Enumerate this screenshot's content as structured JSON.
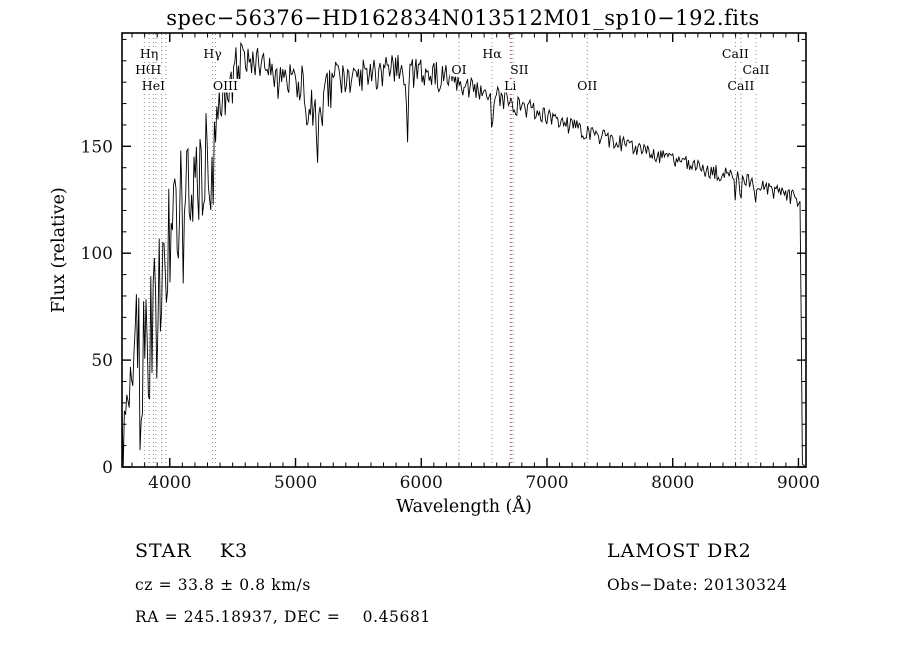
{
  "title": "spec−56376−HD162834N013512M01_sp10−192.fits",
  "chart_data": {
    "type": "line",
    "title": "spec−56376−HD162834N013512M01_sp10−192.fits",
    "xlabel": "Wavelength (Å)",
    "ylabel": "Flux (relative)",
    "xlim": [
      3620,
      9060
    ],
    "ylim": [
      0,
      203
    ],
    "x_ticks": [
      4000,
      5000,
      6000,
      7000,
      8000,
      9000
    ],
    "y_ticks": [
      0,
      50,
      100,
      150
    ],
    "x_minor_step": 100,
    "y_minor_step": 10,
    "grid": false,
    "legend": "none",
    "line_color": "#000000",
    "marker_colors": {
      "gray": "#8a8a8a",
      "red": "#c23232"
    },
    "spectrum_backbone": [
      [
        3630,
        18
      ],
      [
        3680,
        35
      ],
      [
        3720,
        48
      ],
      [
        3760,
        58
      ],
      [
        3800,
        68
      ],
      [
        3850,
        80
      ],
      [
        3900,
        92
      ],
      [
        3950,
        100
      ],
      [
        4000,
        112
      ],
      [
        4050,
        118
      ],
      [
        4100,
        126
      ],
      [
        4150,
        130
      ],
      [
        4200,
        136
      ],
      [
        4250,
        142
      ],
      [
        4300,
        148
      ],
      [
        4350,
        155
      ],
      [
        4400,
        168
      ],
      [
        4450,
        178
      ],
      [
        4500,
        186
      ],
      [
        4550,
        191
      ],
      [
        4600,
        195
      ],
      [
        4650,
        193
      ],
      [
        4700,
        191
      ],
      [
        4750,
        189
      ],
      [
        4800,
        188
      ],
      [
        4850,
        186
      ],
      [
        4900,
        184
      ],
      [
        4950,
        183
      ],
      [
        5000,
        182
      ],
      [
        5050,
        178
      ],
      [
        5100,
        174
      ],
      [
        5150,
        172
      ],
      [
        5200,
        174
      ],
      [
        5250,
        178
      ],
      [
        5300,
        181
      ],
      [
        5400,
        183
      ],
      [
        5500,
        184
      ],
      [
        5600,
        186
      ],
      [
        5700,
        186
      ],
      [
        5800,
        187
      ],
      [
        5900,
        186
      ],
      [
        6000,
        188
      ],
      [
        6100,
        186
      ],
      [
        6200,
        184
      ],
      [
        6300,
        181
      ],
      [
        6400,
        178
      ],
      [
        6500,
        176
      ],
      [
        6600,
        174
      ],
      [
        6700,
        172
      ],
      [
        6800,
        170
      ],
      [
        6900,
        167
      ],
      [
        7000,
        165
      ],
      [
        7100,
        162
      ],
      [
        7200,
        160
      ],
      [
        7300,
        158
      ],
      [
        7400,
        156
      ],
      [
        7500,
        154
      ],
      [
        7600,
        152
      ],
      [
        7700,
        150
      ],
      [
        7800,
        148
      ],
      [
        7900,
        146
      ],
      [
        8000,
        145
      ],
      [
        8100,
        143
      ],
      [
        8200,
        141
      ],
      [
        8300,
        139
      ],
      [
        8400,
        138
      ],
      [
        8500,
        136
      ],
      [
        8600,
        134
      ],
      [
        8700,
        132
      ],
      [
        8800,
        130
      ],
      [
        8900,
        128
      ],
      [
        8950,
        127
      ],
      [
        9000,
        126
      ],
      [
        9015,
        124
      ],
      [
        9030,
        2
      ],
      [
        9060,
        0
      ]
    ],
    "absorption_dips": [
      {
        "wl": 3934,
        "depth": 30,
        "width": 10
      },
      {
        "wl": 3969,
        "depth": 28,
        "width": 10
      },
      {
        "wl": 4102,
        "depth": 22,
        "width": 9
      },
      {
        "wl": 4340,
        "depth": 22,
        "width": 9
      },
      {
        "wl": 4861,
        "depth": 16,
        "width": 9
      },
      {
        "wl": 5175,
        "depth": 28,
        "width": 14
      },
      {
        "wl": 5892,
        "depth": 26,
        "width": 9
      },
      {
        "wl": 6563,
        "depth": 14,
        "width": 8
      },
      {
        "wl": 8498,
        "depth": 8,
        "width": 7
      },
      {
        "wl": 8542,
        "depth": 10,
        "width": 7
      },
      {
        "wl": 8662,
        "depth": 9,
        "width": 7
      }
    ],
    "noise_regions": [
      {
        "from": 3600,
        "to": 3720,
        "amp": 18
      },
      {
        "from": 3720,
        "to": 3900,
        "amp": 33
      },
      {
        "from": 3900,
        "to": 4100,
        "amp": 27
      },
      {
        "from": 4100,
        "to": 4350,
        "amp": 20
      },
      {
        "from": 4350,
        "to": 4600,
        "amp": 10
      },
      {
        "from": 4600,
        "to": 5050,
        "amp": 6
      },
      {
        "from": 5050,
        "to": 5350,
        "amp": 11
      },
      {
        "from": 5350,
        "to": 6150,
        "amp": 6
      },
      {
        "from": 6150,
        "to": 6900,
        "amp": 4
      },
      {
        "from": 6900,
        "to": 7600,
        "amp": 3
      },
      {
        "from": 7600,
        "to": 8300,
        "amp": 2.6
      },
      {
        "from": 8300,
        "to": 9010,
        "amp": 2.8
      },
      {
        "from": 9010,
        "to": 9100,
        "amp": 0.6
      }
    ],
    "line_markers": [
      {
        "wl": 3798,
        "label": "Hθ",
        "row": 1,
        "color": "gray"
      },
      {
        "wl": 3835,
        "label": "Hη",
        "row": 0,
        "color": "gray"
      },
      {
        "wl": 3870,
        "label": "HeI",
        "row": 2,
        "color": "gray"
      },
      {
        "wl": 3889,
        "label": "H",
        "row": 1,
        "color": "gray"
      },
      {
        "wl": 3934,
        "label": "",
        "row": 0,
        "color": "gray"
      },
      {
        "wl": 3969,
        "label": "",
        "row": 0,
        "color": "gray"
      },
      {
        "wl": 4340,
        "label": "Hγ",
        "row": 0,
        "color": "gray"
      },
      {
        "wl": 4363,
        "label": "OIII",
        "row": 2,
        "color": "gray",
        "dx": 10
      },
      {
        "wl": 6300,
        "label": "OI",
        "row": 1,
        "color": "gray"
      },
      {
        "wl": 6563,
        "label": "Hα",
        "row": 0,
        "color": "gray"
      },
      {
        "wl": 6708,
        "label": "Li",
        "row": 2,
        "color": "red"
      },
      {
        "wl": 6717,
        "label": "SII",
        "row": 1,
        "color": "gray",
        "dx": 8
      },
      {
        "wl": 6731,
        "label": "",
        "row": 1,
        "color": "gray"
      },
      {
        "wl": 7320,
        "label": "OII",
        "row": 2,
        "color": "gray"
      },
      {
        "wl": 8498,
        "label": "CaII",
        "row": 0,
        "color": "gray"
      },
      {
        "wl": 8542,
        "label": "CaII",
        "row": 2,
        "color": "gray"
      },
      {
        "wl": 8662,
        "label": "CaII",
        "row": 1,
        "color": "gray"
      }
    ]
  },
  "annotations": {
    "object_type": "STAR    K3",
    "survey": "LAMOST DR2",
    "cz": "cz = 33.8 ± 0.8 km/s",
    "obs_date": "Obs−Date: 20130324",
    "ra_dec": "RA = 245.18937, DEC =    0.45681"
  }
}
